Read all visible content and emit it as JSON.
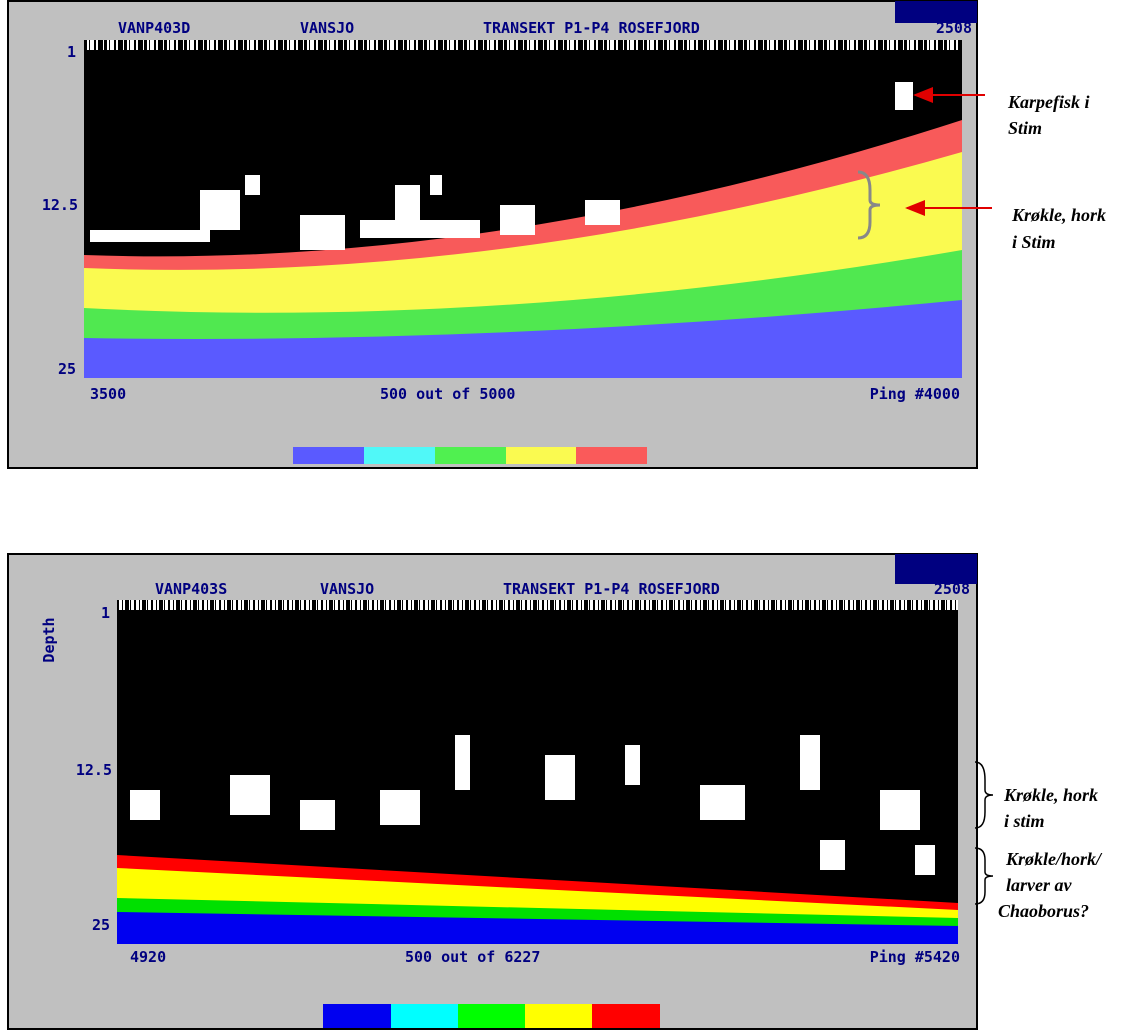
{
  "panels": [
    {
      "header": {
        "file": "VANP403D",
        "lake": "VANSJO",
        "transect": "TRANSEKT P1-P4 ROSEFJORD",
        "number": "2508"
      },
      "depth_labels": [
        "1",
        "12.5",
        "25"
      ],
      "footer": {
        "start": "3500",
        "range": "500 out of 5000",
        "ping": "Ping #4000"
      },
      "annotations": [
        [
          "Karpefisk i",
          "Stim"
        ],
        [
          "Krøkle, hork",
          "i Stim"
        ]
      ]
    },
    {
      "header": {
        "file": "VANP403S",
        "lake": "VANSJO",
        "transect": "TRANSEKT P1-P4 ROSEFJORD",
        "number": "2508"
      },
      "axis_title": "Depth",
      "depth_labels": [
        "1",
        "12.5",
        "25"
      ],
      "footer": {
        "start": "4920",
        "range": "500 out of 6227",
        "ping": "Ping #5420"
      },
      "annotations": [
        [
          "Krøkle, hork",
          "i stim"
        ],
        [
          "Krøkle/hork/",
          "larver  av",
          "Chaoborus?"
        ]
      ]
    }
  ]
}
